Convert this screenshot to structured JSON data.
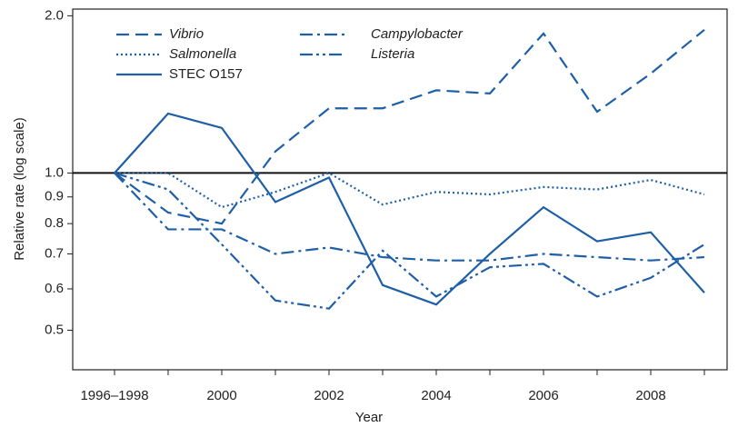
{
  "chart_data": {
    "type": "line",
    "x_label": "Year",
    "y_label": "Relative rate (log scale)",
    "log_scale": true,
    "ylim": [
      0.42,
      2.06
    ],
    "yticks": [
      0.5,
      0.6,
      0.7,
      0.8,
      0.9,
      {
        "value": 1,
        "label": "1.0"
      },
      {
        "value": 2,
        "label": "2.0"
      }
    ],
    "hline": 1,
    "categories": [
      "1996–1998",
      null,
      "2000",
      null,
      "2002",
      null,
      "2004",
      null,
      "2006",
      null,
      "2008",
      null
    ],
    "series": [
      {
        "name": "Vibrio",
        "italic": true,
        "color": "#1f5fa6",
        "dash": "14,7",
        "values": [
          1.0,
          0.84,
          0.8,
          1.1,
          1.33,
          1.33,
          1.44,
          1.42,
          1.85,
          1.31,
          1.55,
          1.88
        ]
      },
      {
        "name": "Salmonella",
        "italic": true,
        "color": "#1f5fa6",
        "dash": "2,3",
        "values": [
          1.0,
          1.0,
          0.86,
          0.92,
          1.0,
          0.87,
          0.92,
          0.91,
          0.94,
          0.93,
          0.97,
          0.91
        ]
      },
      {
        "name": "STEC O157",
        "italic": false,
        "color": "#1f5fa6",
        "dash": "none",
        "values": [
          1.0,
          1.3,
          1.22,
          0.88,
          0.98,
          0.61,
          0.56,
          0.7,
          0.86,
          0.74,
          0.77,
          0.59
        ]
      },
      {
        "name": "Campylobacter",
        "italic": true,
        "color": "#1f5fa6",
        "dash": "14,5,3,5",
        "values": [
          1.0,
          0.78,
          0.78,
          0.7,
          0.72,
          0.69,
          0.68,
          0.68,
          0.7,
          0.69,
          0.68,
          0.69
        ]
      },
      {
        "name": "Listeria",
        "italic": true,
        "color": "#1f5fa6",
        "dash": "14,4,3,4,3,4",
        "values": [
          1.0,
          0.93,
          0.73,
          0.57,
          0.55,
          0.71,
          0.58,
          0.66,
          0.67,
          0.58,
          0.63,
          0.73
        ]
      }
    ]
  }
}
